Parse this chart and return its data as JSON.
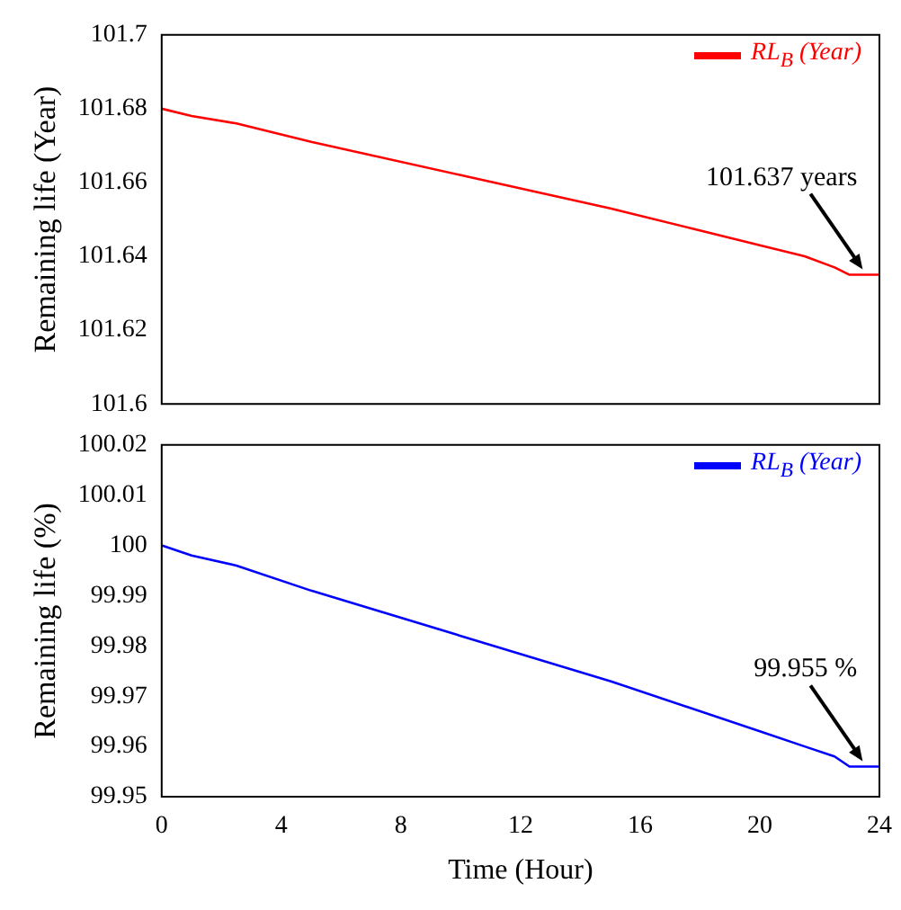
{
  "chart_data": [
    {
      "type": "line",
      "ylabel": "Remaining life (Year)",
      "x": [
        0,
        1,
        2.5,
        5,
        10,
        15,
        20,
        21.5,
        22.5,
        23,
        24
      ],
      "series": [
        {
          "name": "RL$_{B}$ (Year)",
          "color": "#ff0000",
          "values": [
            101.68,
            101.678,
            101.676,
            101.671,
            101.662,
            101.653,
            101.643,
            101.64,
            101.637,
            101.635,
            101.635
          ]
        }
      ],
      "xlim": [
        0,
        24
      ],
      "xticks": [
        0,
        4,
        8,
        12,
        16,
        20,
        24
      ],
      "ylim": [
        101.6,
        101.7
      ],
      "yticks": [
        101.6,
        101.62,
        101.64,
        101.66,
        101.68,
        101.7
      ],
      "tick_labels": "y",
      "grid": false,
      "legend": "top right",
      "marker": "none",
      "line_style": "solid",
      "annotations": [
        {
          "text": "101.637 years",
          "x": 23.5,
          "y": 101.635
        }
      ]
    },
    {
      "type": "line",
      "xlabel": "Time (Hour)",
      "ylabel": "Remaining life (%)",
      "x": [
        0,
        1,
        2.5,
        5,
        10,
        15,
        20,
        21.5,
        22.5,
        23,
        24
      ],
      "series": [
        {
          "name": "RL$_{B}$ (Year)",
          "color": "#0000ff",
          "values": [
            100.0,
            99.998,
            99.996,
            99.991,
            99.982,
            99.973,
            99.963,
            99.96,
            99.958,
            99.956,
            99.956
          ]
        }
      ],
      "xlim": [
        0,
        24
      ],
      "xticks": [
        0,
        4,
        8,
        12,
        16,
        20,
        24
      ],
      "ylim": [
        99.95,
        100.02
      ],
      "yticks": [
        99.95,
        99.96,
        99.97,
        99.98,
        99.99,
        100,
        100.01,
        100.02
      ],
      "grid": false,
      "legend": "top right",
      "marker": "none",
      "line_style": "solid",
      "annotations": [
        {
          "text": "99.955 %",
          "x": 23.5,
          "y": 99.956
        }
      ]
    }
  ]
}
